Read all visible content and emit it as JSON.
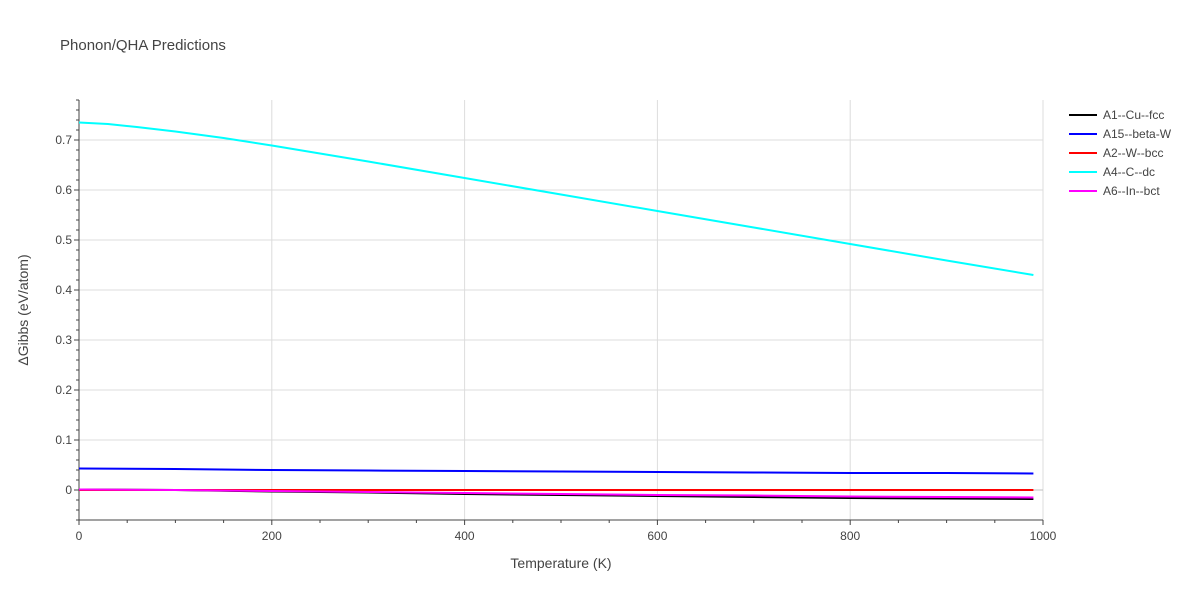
{
  "chart_data": {
    "type": "line",
    "title": "Phonon/QHA Predictions",
    "xlabel": "Temperature (K)",
    "ylabel": "ΔGibbs (eV/atom)",
    "xlim": [
      0,
      1000
    ],
    "ylim": [
      -0.06,
      0.78
    ],
    "xticks": [
      0,
      200,
      400,
      600,
      800,
      1000
    ],
    "xtick_labels": [
      "0",
      "200",
      "400",
      "600",
      "800",
      "1000"
    ],
    "yticks": [
      0,
      0.1,
      0.2,
      0.3,
      0.4,
      0.5,
      0.6,
      0.7
    ],
    "ytick_labels": [
      "0",
      "0.1",
      "0.2",
      "0.3",
      "0.4",
      "0.5",
      "0.6",
      "0.7"
    ],
    "grid": true,
    "legend_position": "top-right",
    "series": [
      {
        "name": "A1--Cu--fcc",
        "color": "#000000",
        "x": [
          0,
          100,
          200,
          300,
          400,
          500,
          600,
          700,
          800,
          900,
          990
        ],
        "y": [
          0.001,
          0.0,
          -0.003,
          -0.005,
          -0.008,
          -0.01,
          -0.012,
          -0.014,
          -0.016,
          -0.017,
          -0.018
        ]
      },
      {
        "name": "A15--beta-W",
        "color": "#0000ff",
        "x": [
          0,
          100,
          200,
          300,
          400,
          500,
          600,
          700,
          800,
          900,
          990
        ],
        "y": [
          0.043,
          0.042,
          0.04,
          0.039,
          0.038,
          0.037,
          0.036,
          0.035,
          0.034,
          0.034,
          0.033
        ]
      },
      {
        "name": "A2--W--bcc",
        "color": "#ff0000",
        "x": [
          0,
          100,
          200,
          300,
          400,
          500,
          600,
          700,
          800,
          900,
          990
        ],
        "y": [
          0,
          0,
          0,
          0,
          0,
          0,
          0,
          0,
          0,
          0,
          0
        ]
      },
      {
        "name": "A4--C--dc",
        "color": "#00ffff",
        "x": [
          0,
          30,
          60,
          100,
          150,
          200,
          300,
          400,
          500,
          600,
          700,
          800,
          900,
          990
        ],
        "y": [
          0.735,
          0.732,
          0.726,
          0.717,
          0.704,
          0.689,
          0.657,
          0.624,
          0.591,
          0.558,
          0.525,
          0.492,
          0.459,
          0.43
        ]
      },
      {
        "name": "A6--In--bct",
        "color": "#ff00ff",
        "x": [
          0,
          100,
          200,
          300,
          400,
          500,
          600,
          700,
          800,
          900,
          990
        ],
        "y": [
          0.001,
          0.0,
          -0.002,
          -0.004,
          -0.006,
          -0.008,
          -0.01,
          -0.011,
          -0.013,
          -0.014,
          -0.015
        ]
      }
    ]
  }
}
